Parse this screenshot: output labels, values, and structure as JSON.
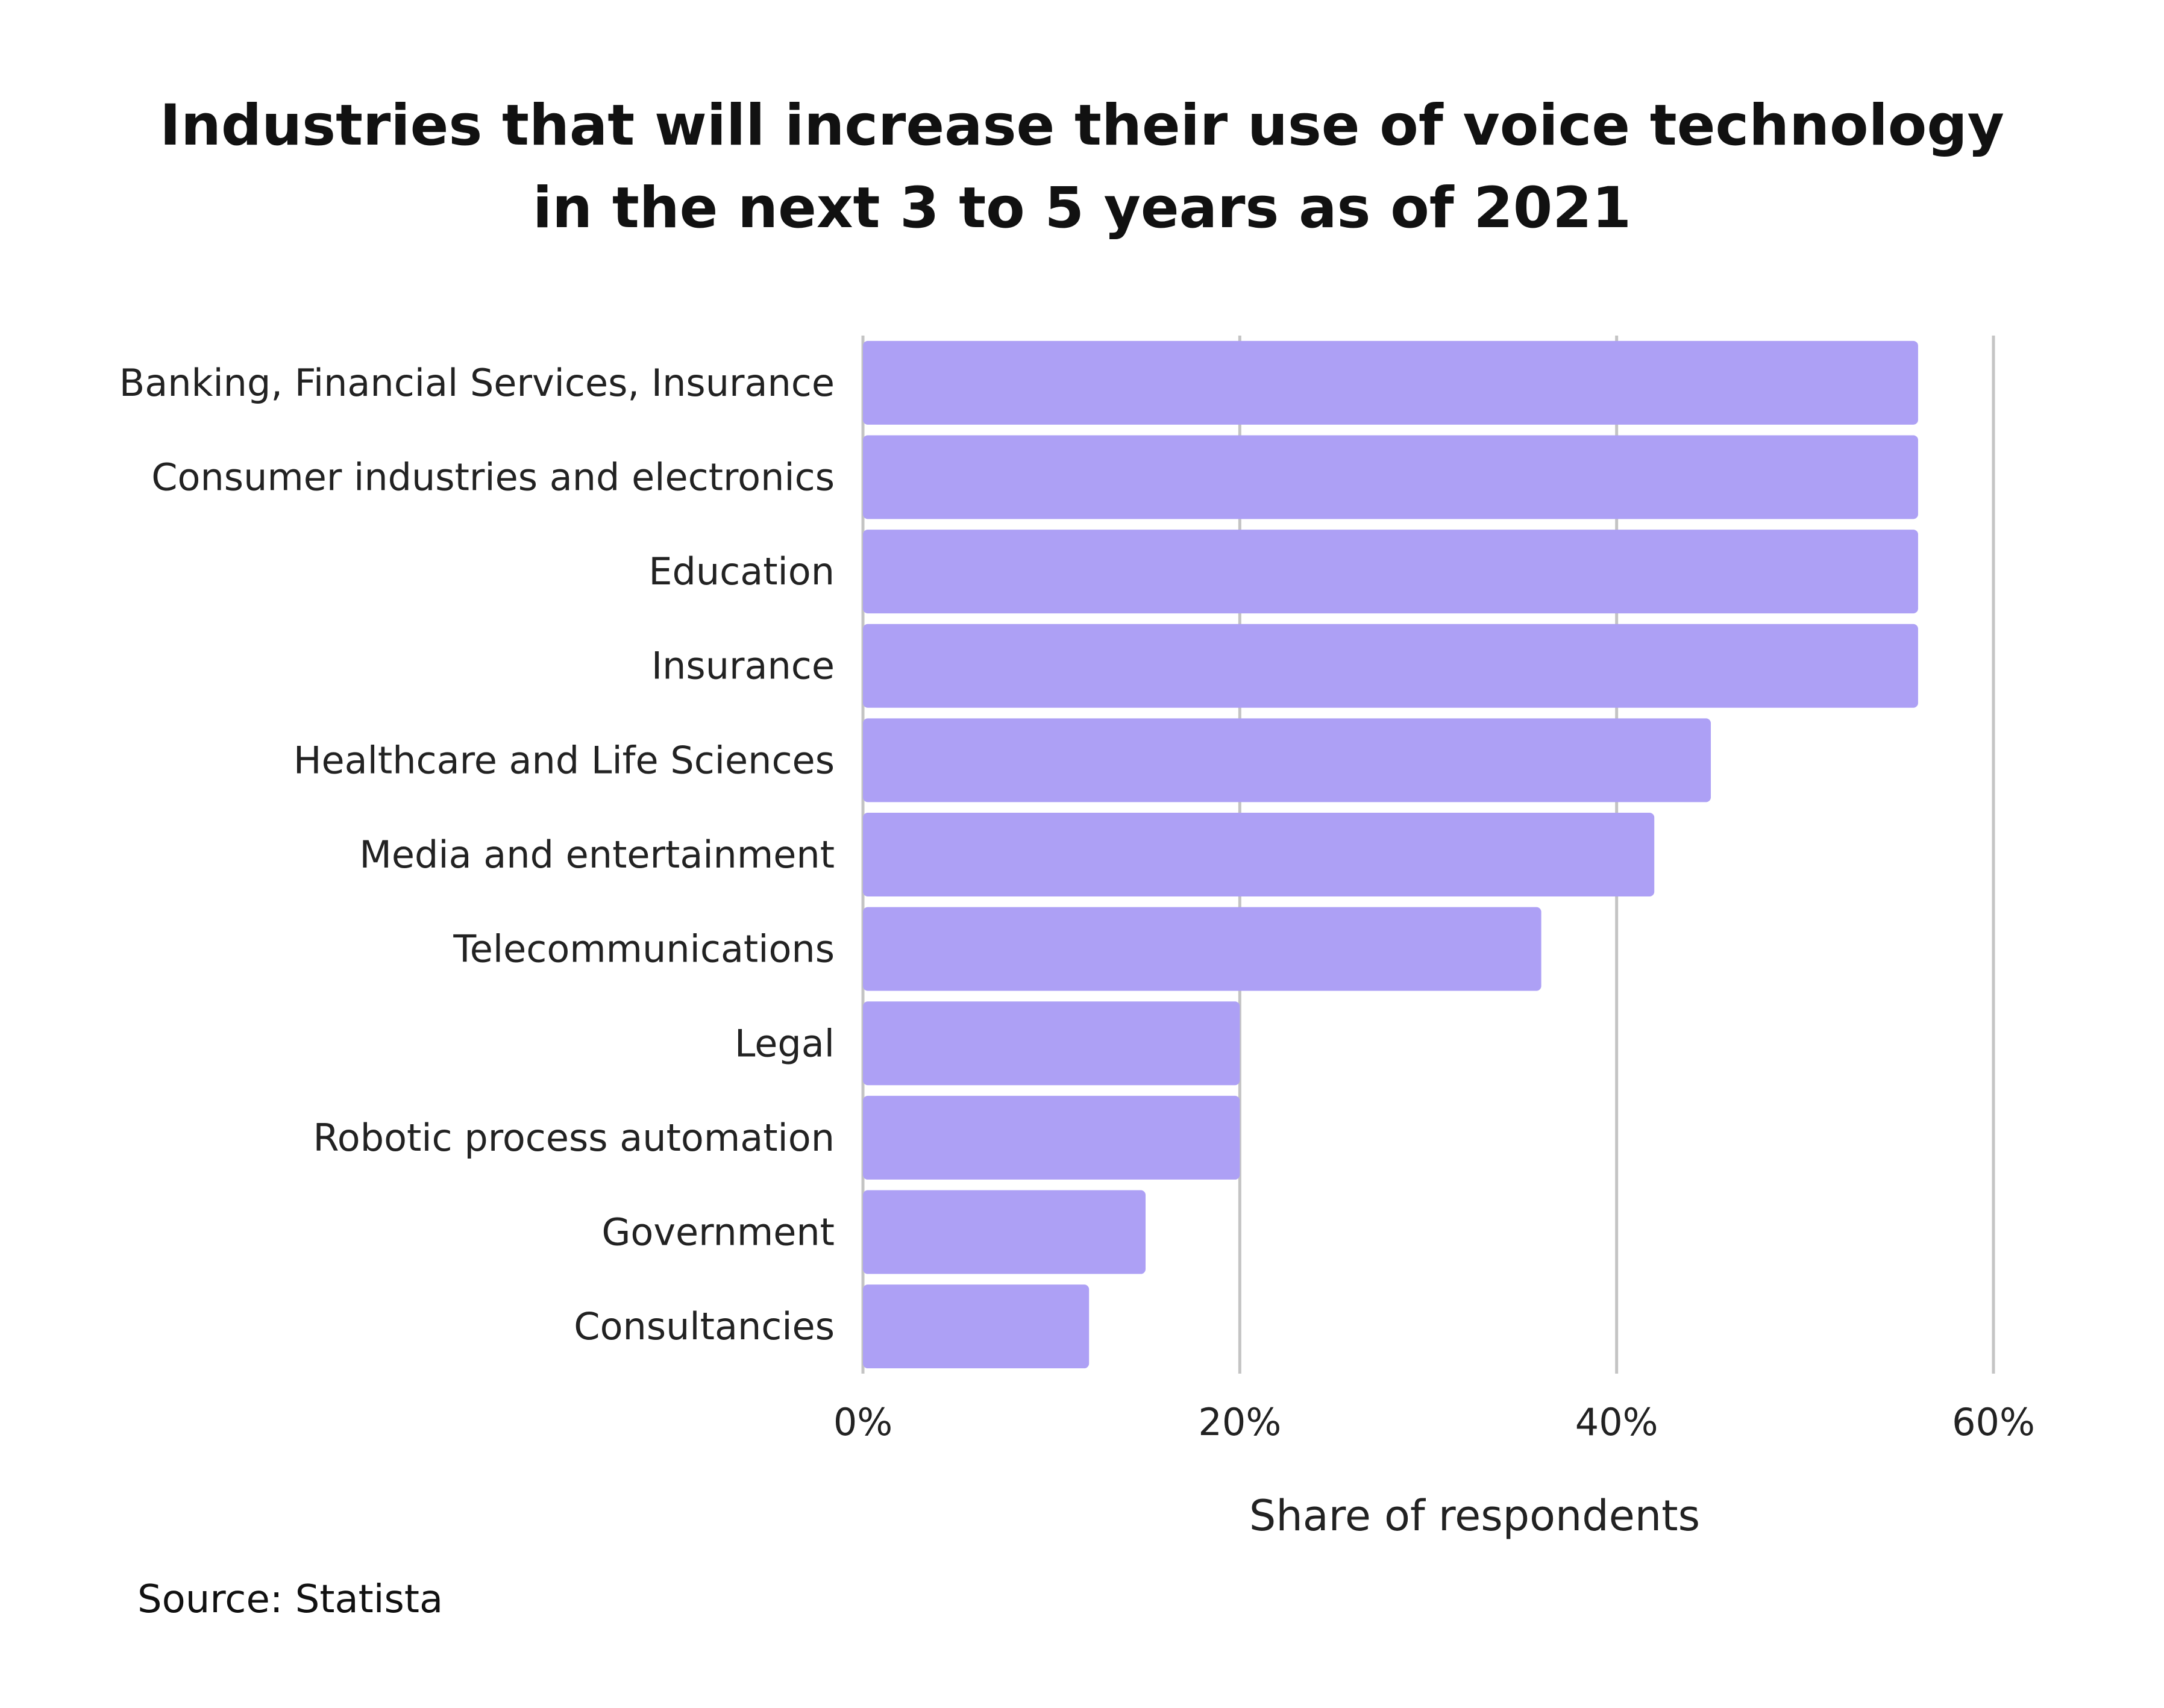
{
  "chart_data": {
    "type": "bar",
    "orientation": "horizontal",
    "title_lines": [
      "Industries that will increase their use of voice technology",
      "in the next 3 to 5 years as of 2021"
    ],
    "categories": [
      "Banking, Financial Services, Insurance",
      "Consumer industries and electronics",
      "Education",
      "Insurance",
      "Healthcare and Life Sciences",
      "Media and entertainment",
      "Telecommunications",
      "Legal",
      "Robotic process automation",
      "Government",
      "Consultancies"
    ],
    "values": [
      56,
      56,
      56,
      56,
      45,
      42,
      36,
      20,
      20,
      15,
      12
    ],
    "xlabel": "Share of respondents",
    "ylabel": "",
    "xlim": [
      0,
      60
    ],
    "x_ticks": [
      0,
      20,
      40,
      60
    ],
    "x_tick_labels": [
      "0%",
      "20%",
      "40%",
      "60%"
    ],
    "grid": "vertical",
    "bar_color": "#ada0f5",
    "grid_color": "#c4c4c4"
  },
  "source": "Source: Statista"
}
